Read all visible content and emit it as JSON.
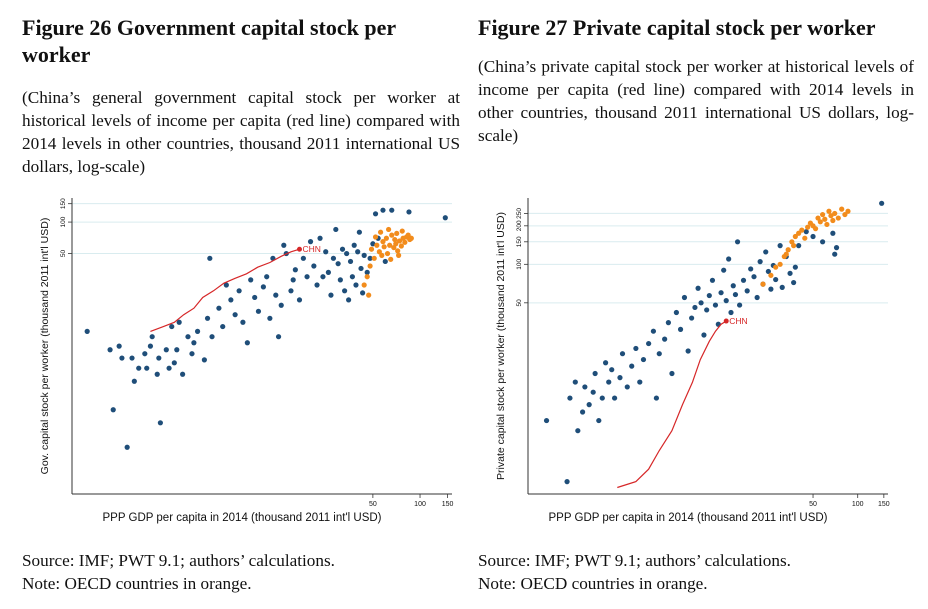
{
  "figures": [
    {
      "title": "Figure 26 Government capital stock per worker",
      "subtitle": "(China’s general government capital stock per worker at historical levels of income per capita (red line) compared with 2014 levels in other countries, thousand 2011 international US dollars, log-scale)",
      "source": "Source: IMF; PWT 9.1; authors’ calculations.",
      "note": "Note: OECD countries in orange."
    },
    {
      "title": "Figure 27 Private capital stock per worker",
      "subtitle": "(China’s private capital stock per worker at historical levels of income per capita (red line) compared with 2014 levels in other countries, thousand 2011 international US dollars, log-scale)",
      "source": "Source: IMF; PWT 9.1; authors’ calculations.",
      "note": "Note: OECD countries in orange."
    }
  ],
  "colors": {
    "non_oecd": "#1f4e79",
    "oecd": "#f28c1c",
    "china": "#d62728",
    "grid": "#d9ecef"
  },
  "chart_data": [
    {
      "type": "scatter",
      "xlabel": "PPP GDP per capita in 2014 (thousand 2011 int'l USD)",
      "ylabel": "Gov. capital stock per worker (thousand 2011 int'l USD)",
      "x_scale": "log",
      "y_scale": "log",
      "xlim": [
        0.6,
        160
      ],
      "ylim": [
        0.25,
        170
      ],
      "xticks": [
        50,
        100,
        150
      ],
      "yticks": [
        50,
        100,
        150
      ],
      "grid": true,
      "china_label": "CHN",
      "non_oecd": [
        [
          0.75,
          9
        ],
        [
          1.05,
          6
        ],
        [
          1.1,
          1.6
        ],
        [
          1.2,
          6.5
        ],
        [
          1.25,
          5
        ],
        [
          1.35,
          0.7
        ],
        [
          1.45,
          5
        ],
        [
          1.5,
          3
        ],
        [
          1.6,
          4
        ],
        [
          1.75,
          5.5
        ],
        [
          1.8,
          4
        ],
        [
          1.9,
          6.5
        ],
        [
          1.95,
          8
        ],
        [
          2.1,
          3.5
        ],
        [
          2.15,
          5
        ],
        [
          2.2,
          1.2
        ],
        [
          2.4,
          6
        ],
        [
          2.5,
          4
        ],
        [
          2.6,
          10
        ],
        [
          2.7,
          4.5
        ],
        [
          2.8,
          6
        ],
        [
          2.9,
          11
        ],
        [
          3.05,
          3.5
        ],
        [
          3.3,
          8
        ],
        [
          3.5,
          5.5
        ],
        [
          3.6,
          7
        ],
        [
          3.8,
          9
        ],
        [
          4.2,
          4.8
        ],
        [
          4.4,
          12
        ],
        [
          4.55,
          45
        ],
        [
          4.7,
          8
        ],
        [
          5.2,
          15
        ],
        [
          5.5,
          10
        ],
        [
          5.8,
          25
        ],
        [
          6.2,
          18
        ],
        [
          6.6,
          13
        ],
        [
          7.0,
          22
        ],
        [
          7.4,
          11
        ],
        [
          7.9,
          7
        ],
        [
          8.3,
          28
        ],
        [
          8.8,
          19
        ],
        [
          9.3,
          14
        ],
        [
          10,
          24
        ],
        [
          10.5,
          30
        ],
        [
          11,
          12
        ],
        [
          11.5,
          45
        ],
        [
          12,
          20
        ],
        [
          12.5,
          8
        ],
        [
          13,
          16
        ],
        [
          13.5,
          60
        ],
        [
          14,
          50
        ],
        [
          15,
          22
        ],
        [
          15.5,
          28
        ],
        [
          16,
          35
        ],
        [
          17,
          18
        ],
        [
          18,
          45
        ],
        [
          19,
          30
        ],
        [
          20,
          65
        ],
        [
          21,
          38
        ],
        [
          22,
          25
        ],
        [
          23,
          70
        ],
        [
          24,
          30
        ],
        [
          25,
          52
        ],
        [
          26,
          33
        ],
        [
          27,
          20
        ],
        [
          28,
          45
        ],
        [
          29,
          85
        ],
        [
          30,
          40
        ],
        [
          31,
          28
        ],
        [
          32,
          55
        ],
        [
          33,
          22
        ],
        [
          34,
          50
        ],
        [
          35,
          18
        ],
        [
          36,
          42
        ],
        [
          37,
          30
        ],
        [
          38,
          60
        ],
        [
          39,
          25
        ],
        [
          40,
          52
        ],
        [
          41,
          80
        ],
        [
          42,
          36
        ],
        [
          43,
          21
        ],
        [
          44,
          48
        ],
        [
          46,
          33
        ],
        [
          48,
          45
        ],
        [
          50,
          62
        ],
        [
          52,
          120
        ],
        [
          54,
          70
        ],
        [
          58,
          130
        ],
        [
          60,
          42
        ],
        [
          66,
          130
        ],
        [
          85,
          125
        ],
        [
          145,
          110
        ]
      ],
      "oecd": [
        [
          48,
          38
        ],
        [
          49,
          55
        ],
        [
          51,
          45
        ],
        [
          52,
          72
        ],
        [
          53,
          60
        ],
        [
          55,
          52
        ],
        [
          56,
          80
        ],
        [
          57,
          48
        ],
        [
          58,
          65
        ],
        [
          59,
          58
        ],
        [
          61,
          70
        ],
        [
          62,
          50
        ],
        [
          63,
          85
        ],
        [
          64,
          60
        ],
        [
          65,
          44
        ],
        [
          66,
          75
        ],
        [
          68,
          57
        ],
        [
          69,
          68
        ],
        [
          70,
          62
        ],
        [
          71,
          78
        ],
        [
          72,
          53
        ],
        [
          73,
          48
        ],
        [
          74,
          66
        ],
        [
          76,
          59
        ],
        [
          77,
          82
        ],
        [
          78,
          70
        ],
        [
          80,
          64
        ],
        [
          82,
          72
        ],
        [
          84,
          75
        ],
        [
          86,
          68
        ],
        [
          88,
          70
        ],
        [
          46,
          30
        ],
        [
          47,
          20
        ],
        [
          44,
          25
        ]
      ],
      "china_path": [
        [
          1.9,
          9
        ],
        [
          2.3,
          10
        ],
        [
          2.7,
          11
        ],
        [
          3.1,
          13
        ],
        [
          3.6,
          15
        ],
        [
          4.1,
          19
        ],
        [
          4.8,
          22
        ],
        [
          5.6,
          26
        ],
        [
          6.6,
          29
        ],
        [
          7.8,
          32
        ],
        [
          9.2,
          37
        ],
        [
          11,
          41
        ],
        [
          13,
          47
        ],
        [
          15,
          52
        ],
        [
          17,
          55
        ]
      ]
    },
    {
      "type": "scatter",
      "xlabel": "PPP GDP per capita in 2014 (thousand 2011 int'l USD)",
      "ylabel": "Private capital stock per worker (thousand 2011 int'l USD)",
      "x_scale": "log",
      "y_scale": "log",
      "xlim": [
        0.6,
        160
      ],
      "ylim": [
        1.6,
        330
      ],
      "xticks": [
        50,
        100,
        150
      ],
      "yticks": [
        50,
        100,
        150,
        200,
        250
      ],
      "grid": true,
      "china_label": "CHN",
      "non_oecd": [
        [
          0.8,
          6
        ],
        [
          1.1,
          2
        ],
        [
          1.15,
          9
        ],
        [
          1.25,
          12
        ],
        [
          1.3,
          5
        ],
        [
          1.4,
          7
        ],
        [
          1.45,
          11
        ],
        [
          1.55,
          8
        ],
        [
          1.65,
          10
        ],
        [
          1.7,
          14
        ],
        [
          1.8,
          6
        ],
        [
          1.9,
          9
        ],
        [
          2.0,
          17
        ],
        [
          2.1,
          12
        ],
        [
          2.2,
          15
        ],
        [
          2.3,
          9
        ],
        [
          2.5,
          13
        ],
        [
          2.6,
          20
        ],
        [
          2.8,
          11
        ],
        [
          3.0,
          16
        ],
        [
          3.2,
          22
        ],
        [
          3.4,
          12
        ],
        [
          3.6,
          18
        ],
        [
          3.9,
          24
        ],
        [
          4.2,
          30
        ],
        [
          4.4,
          9
        ],
        [
          4.6,
          20
        ],
        [
          5.0,
          26
        ],
        [
          5.3,
          35
        ],
        [
          5.6,
          14
        ],
        [
          6.0,
          42
        ],
        [
          6.4,
          31
        ],
        [
          6.8,
          55
        ],
        [
          7.2,
          21
        ],
        [
          7.6,
          38
        ],
        [
          8.0,
          46
        ],
        [
          8.4,
          65
        ],
        [
          8.8,
          50
        ],
        [
          9.2,
          28
        ],
        [
          9.6,
          44
        ],
        [
          10,
          57
        ],
        [
          10.5,
          75
        ],
        [
          11,
          48
        ],
        [
          11.5,
          34
        ],
        [
          12,
          60
        ],
        [
          12.5,
          90
        ],
        [
          13,
          52
        ],
        [
          13.5,
          110
        ],
        [
          14,
          42
        ],
        [
          14.5,
          68
        ],
        [
          15,
          58
        ],
        [
          15.5,
          150
        ],
        [
          16,
          48
        ],
        [
          17,
          75
        ],
        [
          18,
          62
        ],
        [
          19,
          92
        ],
        [
          20,
          80
        ],
        [
          21,
          55
        ],
        [
          22,
          105
        ],
        [
          23,
          70
        ],
        [
          24,
          125
        ],
        [
          25,
          88
        ],
        [
          26,
          64
        ],
        [
          27,
          98
        ],
        [
          28,
          76
        ],
        [
          30,
          140
        ],
        [
          31,
          66
        ],
        [
          33,
          115
        ],
        [
          35,
          85
        ],
        [
          37,
          72
        ],
        [
          38,
          95
        ],
        [
          40,
          140
        ],
        [
          45,
          180
        ],
        [
          50,
          165
        ],
        [
          58,
          150
        ],
        [
          68,
          175
        ],
        [
          70,
          120
        ],
        [
          72,
          135
        ],
        [
          145,
          300
        ]
      ],
      "oecd": [
        [
          23,
          70
        ],
        [
          26,
          82
        ],
        [
          28,
          95
        ],
        [
          30,
          100
        ],
        [
          32,
          115
        ],
        [
          34,
          130
        ],
        [
          36,
          150
        ],
        [
          38,
          165
        ],
        [
          40,
          175
        ],
        [
          42,
          185
        ],
        [
          44,
          160
        ],
        [
          46,
          195
        ],
        [
          48,
          210
        ],
        [
          50,
          200
        ],
        [
          52,
          190
        ],
        [
          54,
          230
        ],
        [
          56,
          215
        ],
        [
          58,
          245
        ],
        [
          60,
          225
        ],
        [
          62,
          205
        ],
        [
          64,
          260
        ],
        [
          66,
          240
        ],
        [
          68,
          220
        ],
        [
          70,
          250
        ],
        [
          74,
          230
        ],
        [
          78,
          270
        ],
        [
          82,
          245
        ],
        [
          86,
          260
        ],
        [
          33,
          120
        ],
        [
          37,
          140
        ]
      ],
      "china_path": [
        [
          2.4,
          1.8
        ],
        [
          3.2,
          2.0
        ],
        [
          3.9,
          2.5
        ],
        [
          4.6,
          3.5
        ],
        [
          5.6,
          5.0
        ],
        [
          6.6,
          8.0
        ],
        [
          7.7,
          12
        ],
        [
          8.7,
          18
        ],
        [
          10,
          25
        ],
        [
          11,
          30
        ],
        [
          12,
          34
        ],
        [
          13,
          36
        ]
      ]
    }
  ]
}
